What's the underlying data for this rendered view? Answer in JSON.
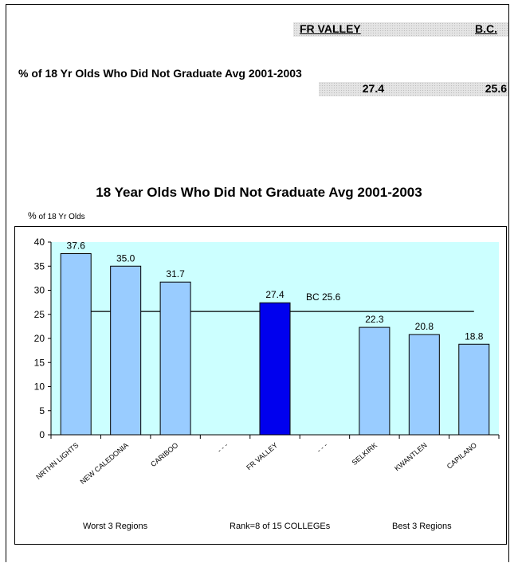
{
  "header": {
    "col1": "FR VALLEY",
    "col2": "B.C."
  },
  "metric": {
    "label": "% of 18 Yr Olds Who Did Not Graduate Avg 2001-2003",
    "fr_value": "27.4",
    "bc_value": "25.6"
  },
  "captions": {
    "worst": "Worst 3 Regions",
    "rank": "Rank=8 of 15 COLLEGEs",
    "best": "Best 3 Regions"
  },
  "colors": {
    "plot_bg": "#ccffff",
    "bar": "#99ccff",
    "highlight_bar": "#0000ee"
  },
  "chart_data": {
    "type": "bar",
    "title": "18 Year Olds Who Did Not Graduate Avg 2001-2003",
    "ylabel_main": "%",
    "ylabel_sub": " of 18 Yr Olds",
    "xlabel": "",
    "ylim": [
      0,
      40
    ],
    "yticks": [
      0,
      5,
      10,
      15,
      20,
      25,
      30,
      35,
      40
    ],
    "categories": [
      "NRTHN LIGHTS",
      "NEW CALEDONIA",
      "CARIBOO",
      "- - -",
      "FR VALLEY",
      "- - -",
      "SELKIRK",
      "KWANTLEN",
      "CAPILANO"
    ],
    "values": [
      37.6,
      35.0,
      31.7,
      null,
      27.4,
      null,
      22.3,
      20.8,
      18.8
    ],
    "value_labels": [
      "37.6",
      "35.0",
      "31.7",
      "",
      "27.4",
      "",
      "22.3",
      "20.8",
      "18.8"
    ],
    "highlight_index": 4,
    "reference": {
      "value": 25.6,
      "label": "BC 25.6"
    },
    "grid": false,
    "legend": "none"
  }
}
